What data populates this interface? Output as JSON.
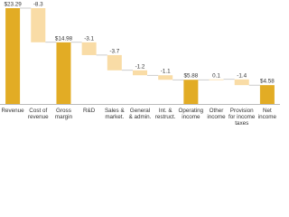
{
  "chart_data": {
    "type": "waterfall",
    "categories": [
      [
        "Revenue"
      ],
      [
        "Cost of",
        "revenue"
      ],
      [
        "Gross",
        "margin"
      ],
      [
        "R&D"
      ],
      [
        "Sales &",
        "market."
      ],
      [
        "General",
        "& admin."
      ],
      [
        "Int. &",
        "restruct."
      ],
      [
        "Operating",
        "income"
      ],
      [
        "Other",
        "income"
      ],
      [
        "Provision",
        "for income",
        "taxes"
      ],
      [
        "Net",
        "income"
      ]
    ],
    "values": [
      23.29,
      -8.3,
      14.98,
      -3.1,
      -3.7,
      -1.2,
      -1.1,
      5.88,
      0.1,
      -1.4,
      4.58
    ],
    "value_labels": [
      "$23.29",
      "-8.3",
      "$14.98",
      "-3.1",
      "-3.7",
      "-1.2",
      "-1.1",
      "$5.88",
      "0.1",
      "-1.4",
      "$4.58"
    ],
    "totals": [
      true,
      false,
      true,
      false,
      false,
      false,
      false,
      true,
      false,
      false,
      true
    ],
    "total_color": "#e2ac25",
    "change_color": "#f9dca6"
  }
}
